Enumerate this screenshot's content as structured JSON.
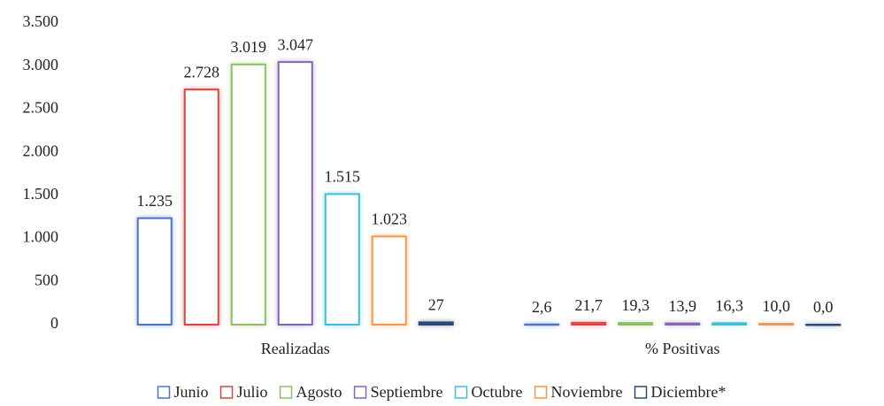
{
  "chart_data": {
    "type": "bar",
    "categories": [
      "Realizadas",
      "% Positivas"
    ],
    "series": [
      {
        "name": "Junio",
        "color": "#4a76c8",
        "values": [
          1235,
          2.6
        ],
        "value_labels": [
          "1.235",
          "2,6"
        ]
      },
      {
        "name": "Julio",
        "color": "#d9453f",
        "values": [
          2728,
          21.7
        ],
        "value_labels": [
          "2.728",
          "21,7"
        ]
      },
      {
        "name": "Agosto",
        "color": "#8cc063",
        "values": [
          3019,
          19.3
        ],
        "value_labels": [
          "3.019",
          "19,3"
        ]
      },
      {
        "name": "Septiembre",
        "color": "#8466b0",
        "values": [
          3047,
          13.9
        ],
        "value_labels": [
          "3.047",
          "13,9"
        ]
      },
      {
        "name": "Octubre",
        "color": "#3fbfd6",
        "values": [
          1515,
          16.3
        ],
        "value_labels": [
          "1.515",
          "16,3"
        ]
      },
      {
        "name": "Noviembre",
        "color": "#f7964a",
        "values": [
          1023,
          10.0
        ],
        "value_labels": [
          "1.023",
          "10,0"
        ]
      },
      {
        "name": "Diciembre*",
        "color": "#2b4a7a",
        "values": [
          27,
          0.0
        ],
        "value_labels": [
          "27",
          "0,0"
        ]
      }
    ],
    "ylim": [
      0,
      3500
    ],
    "yticks": [
      0,
      500,
      {
        "value": 1000,
        "label": "1.000"
      },
      {
        "value": 1500,
        "label": "1.500"
      },
      {
        "value": 2000,
        "label": "2.000"
      },
      {
        "value": 2500,
        "label": "2.500"
      },
      {
        "value": 3000,
        "label": "3.000"
      },
      {
        "value": 3500,
        "label": "3.500"
      }
    ],
    "grid": false,
    "legend": "bottom"
  }
}
